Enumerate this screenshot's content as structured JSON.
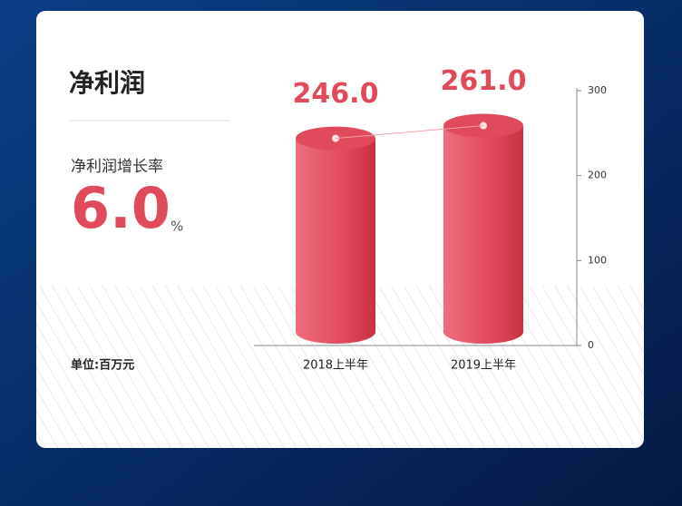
{
  "header": {
    "title": "净利润",
    "subtitle": "净利润增长率",
    "growth_value": "6.0",
    "growth_unit": "%",
    "unit_note": "单位:百万元"
  },
  "chart_data": {
    "type": "bar",
    "categories": [
      "2018上半年",
      "2019上半年"
    ],
    "values": [
      246,
      261
    ],
    "value_labels": [
      "246.0",
      "261.0"
    ],
    "color": "#e04a5a",
    "ylim": [
      0,
      300
    ],
    "yticks": [
      0,
      100,
      200,
      300
    ]
  }
}
